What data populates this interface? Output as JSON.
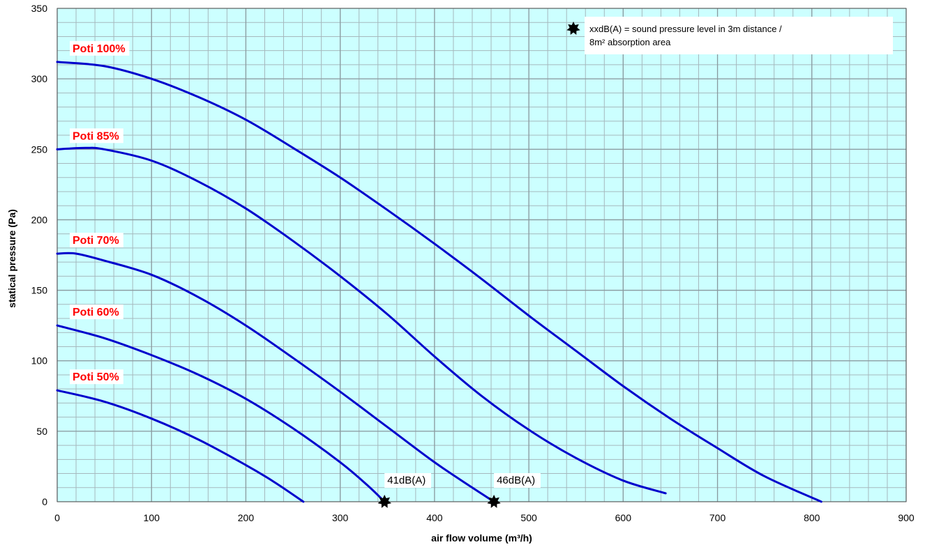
{
  "colors": {
    "plot_background": "#ccffff",
    "grid_minor": "#a6b8bd",
    "grid_major": "#8a9a9f",
    "curve": "#0000cc",
    "series_label": "#ff0000",
    "marker": "#000000"
  },
  "chart_data": {
    "type": "line",
    "title": "",
    "xlabel": "air flow volume (m³/h)",
    "ylabel": "statical pressure (Pa)",
    "xlim": [
      0,
      900
    ],
    "ylim": [
      0,
      350
    ],
    "x_ticks": [
      0,
      100,
      200,
      300,
      400,
      500,
      600,
      700,
      800,
      900
    ],
    "y_ticks": [
      0,
      50,
      100,
      150,
      200,
      250,
      300,
      350
    ],
    "grid": true,
    "minor_grid": {
      "x_step": 20,
      "y_step": 10
    },
    "series": [
      {
        "name": "Poti 100%",
        "points": [
          [
            0,
            312
          ],
          [
            50,
            309
          ],
          [
            100,
            300
          ],
          [
            150,
            287
          ],
          [
            200,
            271
          ],
          [
            250,
            251
          ],
          [
            300,
            230
          ],
          [
            350,
            207
          ],
          [
            400,
            183
          ],
          [
            450,
            158
          ],
          [
            500,
            132
          ],
          [
            550,
            107
          ],
          [
            600,
            82
          ],
          [
            650,
            59
          ],
          [
            700,
            38
          ],
          [
            750,
            18
          ],
          [
            810,
            0
          ]
        ]
      },
      {
        "name": "Poti 85%",
        "points": [
          [
            0,
            250
          ],
          [
            30,
            251
          ],
          [
            50,
            250
          ],
          [
            100,
            242
          ],
          [
            150,
            227
          ],
          [
            200,
            208
          ],
          [
            250,
            185
          ],
          [
            300,
            160
          ],
          [
            350,
            133
          ],
          [
            400,
            103
          ],
          [
            450,
            75
          ],
          [
            500,
            51
          ],
          [
            550,
            31
          ],
          [
            600,
            15
          ],
          [
            645,
            6
          ]
        ]
      },
      {
        "name": "Poti 70%",
        "points": [
          [
            0,
            176
          ],
          [
            20,
            176
          ],
          [
            50,
            171
          ],
          [
            100,
            161
          ],
          [
            150,
            145
          ],
          [
            200,
            125
          ],
          [
            250,
            102
          ],
          [
            300,
            78
          ],
          [
            350,
            53
          ],
          [
            400,
            28
          ],
          [
            440,
            10
          ],
          [
            463,
            0
          ]
        ]
      },
      {
        "name": "Poti 60%",
        "points": [
          [
            0,
            125
          ],
          [
            50,
            116
          ],
          [
            100,
            104
          ],
          [
            150,
            90
          ],
          [
            200,
            73
          ],
          [
            250,
            52
          ],
          [
            300,
            28
          ],
          [
            330,
            11
          ],
          [
            347,
            0
          ]
        ]
      },
      {
        "name": "Poti 50%",
        "points": [
          [
            0,
            79
          ],
          [
            50,
            71
          ],
          [
            100,
            59
          ],
          [
            150,
            44
          ],
          [
            200,
            26
          ],
          [
            230,
            14
          ],
          [
            261,
            0
          ]
        ]
      }
    ],
    "markers": [
      {
        "x": 347,
        "y": 0,
        "label": "41dB(A)"
      },
      {
        "x": 463,
        "y": 0,
        "label": "46dB(A)"
      }
    ],
    "legend": {
      "placement": "top-right",
      "line1": "xxdB(A) = sound pressure level in 3m distance /",
      "line2": "8m² absorption area"
    }
  }
}
